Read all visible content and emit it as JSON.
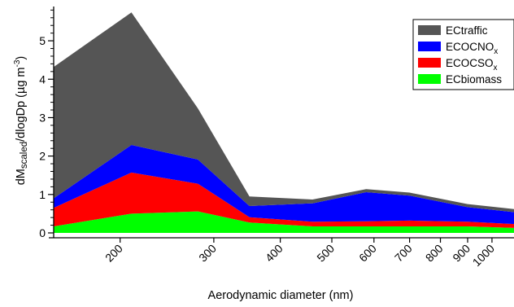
{
  "chart_data": {
    "type": "area",
    "stacked": true,
    "xscale": "log",
    "xlabel": "Aerodynamic diameter (nm)",
    "ylabel": {
      "main": "dM",
      "subscript": "scaled",
      "rest": "/dlogDp (µg m",
      "superscript": "-3",
      "close": ")"
    },
    "xlim": [
      150,
      1100
    ],
    "ylim": [
      0,
      5.85
    ],
    "x": [
      150,
      210,
      280,
      350,
      460,
      580,
      700,
      900,
      1100
    ],
    "xticks": [
      {
        "value": 200,
        "label": "200"
      },
      {
        "value": 300,
        "label": "300"
      },
      {
        "value": 400,
        "label": "400"
      },
      {
        "value": 500,
        "label": "500"
      },
      {
        "value": 600,
        "label": "600"
      },
      {
        "value": 700,
        "label": "700"
      },
      {
        "value": 800,
        "label": "800"
      },
      {
        "value": 900,
        "label": "900"
      },
      {
        "value": 1000,
        "label": "1000"
      }
    ],
    "yticks": [
      {
        "value": 0,
        "label": "0"
      },
      {
        "value": 1,
        "label": "1"
      },
      {
        "value": 2,
        "label": "2"
      },
      {
        "value": 3,
        "label": "3"
      },
      {
        "value": 4,
        "label": "4"
      },
      {
        "value": 5,
        "label": "5"
      }
    ],
    "legend_position": "top-right",
    "grid": false,
    "series": [
      {
        "key": "biomass",
        "name": "ECbiomass",
        "name_sub": "",
        "color": "#00ff00",
        "values": [
          0.17,
          0.5,
          0.56,
          0.27,
          0.17,
          0.17,
          0.17,
          0.17,
          0.13
        ]
      },
      {
        "key": "cso",
        "name": "ECOCSO",
        "name_sub": "x",
        "color": "#ff0000",
        "values": [
          0.48,
          1.07,
          0.72,
          0.14,
          0.12,
          0.13,
          0.15,
          0.12,
          0.1
        ]
      },
      {
        "key": "cno",
        "name": "ECOCNO",
        "name_sub": "x",
        "color": "#0000ff",
        "values": [
          0.25,
          0.72,
          0.63,
          0.29,
          0.48,
          0.76,
          0.65,
          0.38,
          0.31
        ]
      },
      {
        "key": "traffic",
        "name": "ECtraffic",
        "name_sub": "",
        "color": "#555555",
        "values": [
          3.42,
          3.45,
          1.33,
          0.25,
          0.1,
          0.08,
          0.08,
          0.08,
          0.08
        ]
      }
    ]
  }
}
